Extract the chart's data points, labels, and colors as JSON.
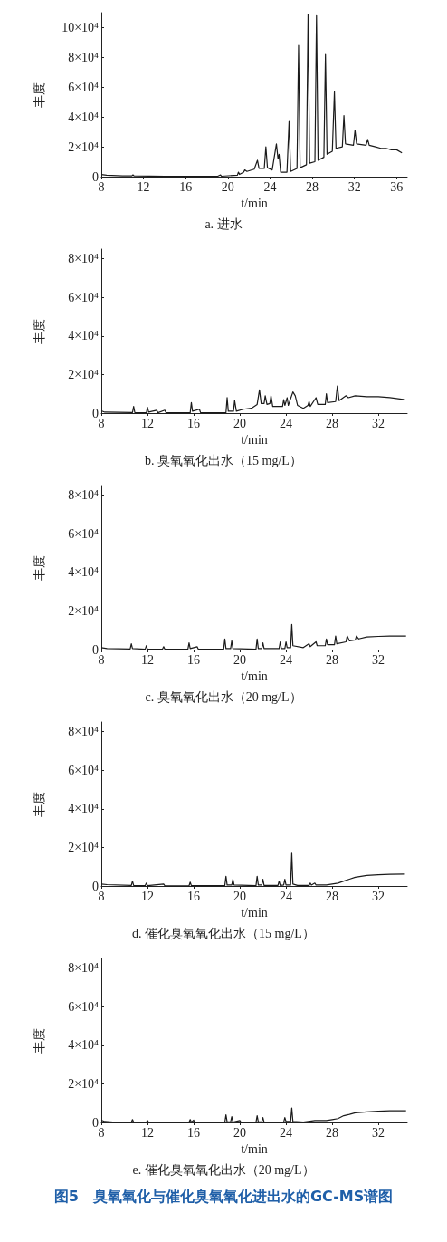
{
  "chart_data": [
    {
      "type": "line",
      "title": "a. 进水",
      "xlabel": "t/min",
      "ylabel": "丰度",
      "marker": "none",
      "xlim": [
        8,
        37
      ],
      "ylim": [
        0,
        110000
      ],
      "xticks": [
        8,
        12,
        16,
        20,
        24,
        28,
        32,
        36
      ],
      "yticks": [
        {
          "value": 0,
          "label": "0"
        },
        {
          "value": 20000,
          "label": "2×10⁴"
        },
        {
          "value": 40000,
          "label": "4×10⁴"
        },
        {
          "value": 60000,
          "label": "6×10⁴"
        },
        {
          "value": 80000,
          "label": "8×10⁴"
        },
        {
          "value": 100000,
          "label": "10×10⁴"
        }
      ],
      "x": [
        8.0,
        8.5,
        10.0,
        10.9,
        11.0,
        11.1,
        14,
        19.0,
        19.3,
        19.4,
        20.9,
        21.0,
        21.1,
        21.5,
        21.6,
        21.8,
        22.5,
        22.8,
        22.95,
        23.45,
        23.6,
        23.75,
        24.2,
        24.6,
        24.75,
        24.85,
        25.0,
        25.6,
        25.8,
        25.95,
        26.55,
        26.7,
        26.85,
        27.45,
        27.6,
        27.75,
        28.25,
        28.4,
        28.55,
        29.1,
        29.25,
        29.4,
        29.9,
        30.1,
        30.25,
        30.85,
        31.0,
        31.15,
        31.9,
        32.05,
        32.2,
        33.1,
        33.25,
        33.4,
        34.0,
        34.5,
        35.0,
        35.5,
        36.0,
        36.5
      ],
      "series": [
        {
          "color": "#1a1a1a",
          "values": [
            1500,
            1000,
            500,
            500,
            1200,
            500,
            200,
            200,
            1200,
            300,
            1000,
            3000,
            1500,
            3000,
            4500,
            3500,
            5000,
            11000,
            5500,
            5500,
            20000,
            6000,
            4500,
            22000,
            12000,
            15000,
            3000,
            3000,
            37000,
            3500,
            5500,
            88000,
            6000,
            8000,
            109000,
            9000,
            10000,
            108000,
            11000,
            13000,
            82000,
            15000,
            17000,
            57000,
            19000,
            20000,
            41000,
            22000,
            21000,
            31000,
            22000,
            21000,
            25000,
            21000,
            20000,
            19000,
            19000,
            18000,
            18000,
            16000
          ]
        }
      ]
    },
    {
      "type": "line",
      "title": "b. 臭氧氧化出水（15 mg/L）",
      "xlabel": "t/min",
      "ylabel": "丰度",
      "marker": "none",
      "xlim": [
        8,
        34.5
      ],
      "ylim": [
        0,
        85000
      ],
      "xticks": [
        8,
        12,
        16,
        20,
        24,
        28,
        32
      ],
      "yticks": [
        {
          "value": 0,
          "label": "0"
        },
        {
          "value": 20000,
          "label": "2×10⁴"
        },
        {
          "value": 40000,
          "label": "4×10⁴"
        },
        {
          "value": 60000,
          "label": "6×10⁴"
        },
        {
          "value": 80000,
          "label": "8×10⁴"
        }
      ],
      "x": [
        8.0,
        8.3,
        10.7,
        10.8,
        10.9,
        11.9,
        12.0,
        12.1,
        12.8,
        12.9,
        13.5,
        13.6,
        15.7,
        15.8,
        15.9,
        16.5,
        16.6,
        18.8,
        18.9,
        19.0,
        19.45,
        19.55,
        19.7,
        20.3,
        21.0,
        21.5,
        21.7,
        21.85,
        22.1,
        22.2,
        22.35,
        22.6,
        22.7,
        22.85,
        23.7,
        23.8,
        23.9,
        24.1,
        24.2,
        24.6,
        24.8,
        25.0,
        25.5,
        25.9,
        26.0,
        26.1,
        26.6,
        26.75,
        27.4,
        27.5,
        27.6,
        28.3,
        28.45,
        28.6,
        29.2,
        29.4,
        30.0,
        31.0,
        32.0,
        33.0,
        34.3
      ],
      "series": [
        {
          "color": "#1a1a1a",
          "values": [
            1200,
            500,
            300,
            3500,
            300,
            200,
            3000,
            500,
            1500,
            200,
            1500,
            200,
            200,
            5500,
            1000,
            2000,
            200,
            200,
            8000,
            1000,
            1000,
            6500,
            1000,
            2000,
            2500,
            4500,
            12000,
            5000,
            5000,
            9000,
            4500,
            5000,
            9000,
            3500,
            3500,
            7000,
            4000,
            8000,
            4000,
            11000,
            9000,
            4000,
            2500,
            4000,
            6000,
            3500,
            8000,
            4500,
            4500,
            10000,
            5500,
            6000,
            14000,
            6500,
            9000,
            8000,
            9000,
            8500,
            8500,
            8000,
            7000
          ]
        }
      ]
    },
    {
      "type": "line",
      "title": "c. 臭氧氧化出水（20 mg/L）",
      "xlabel": "t/min",
      "ylabel": "丰度",
      "marker": "none",
      "xlim": [
        8,
        34.5
      ],
      "ylim": [
        0,
        85000
      ],
      "xticks": [
        8,
        12,
        16,
        20,
        24,
        28,
        32
      ],
      "yticks": [
        {
          "value": 0,
          "label": "0"
        },
        {
          "value": 20000,
          "label": "2×10⁴"
        },
        {
          "value": 40000,
          "label": "4×10⁴"
        },
        {
          "value": 60000,
          "label": "6×10⁴"
        },
        {
          "value": 80000,
          "label": "8×10⁴"
        }
      ],
      "x": [
        8.0,
        8.5,
        10.5,
        10.6,
        10.7,
        11.8,
        11.9,
        12.0,
        13.3,
        13.4,
        13.5,
        15.5,
        15.6,
        15.7,
        16.3,
        16.4,
        18.6,
        18.7,
        18.8,
        19.2,
        19.3,
        19.4,
        21.4,
        21.5,
        21.6,
        21.9,
        22.0,
        22.1,
        23.4,
        23.5,
        23.6,
        23.9,
        24.0,
        24.1,
        24.4,
        24.5,
        24.6,
        25.5,
        26.0,
        26.1,
        26.6,
        26.7,
        27.4,
        27.5,
        27.6,
        28.2,
        28.3,
        28.4,
        29.2,
        29.3,
        29.5,
        30.0,
        30.1,
        30.3,
        31.0,
        32.0,
        33.0,
        34.4
      ],
      "series": [
        {
          "color": "#1a1a1a",
          "values": [
            1000,
            500,
            300,
            3000,
            500,
            200,
            2000,
            200,
            200,
            1500,
            200,
            200,
            3500,
            500,
            1500,
            200,
            200,
            5500,
            500,
            500,
            4500,
            500,
            200,
            5500,
            500,
            500,
            3500,
            500,
            500,
            4000,
            500,
            500,
            4000,
            1000,
            1000,
            13000,
            2000,
            1000,
            3000,
            1500,
            4000,
            2000,
            2000,
            5500,
            2500,
            2500,
            7000,
            3000,
            4000,
            7000,
            4500,
            5000,
            7000,
            5500,
            6500,
            6800,
            7000,
            7000
          ]
        }
      ]
    },
    {
      "type": "line",
      "title": "d. 催化臭氧氧化出水（15 mg/L）",
      "xlabel": "t/min",
      "ylabel": "丰度",
      "marker": "none",
      "xlim": [
        8,
        34.5
      ],
      "ylim": [
        0,
        85000
      ],
      "xticks": [
        8,
        12,
        16,
        20,
        24,
        28,
        32
      ],
      "yticks": [
        {
          "value": 0,
          "label": "0"
        },
        {
          "value": 20000,
          "label": "2×10⁴"
        },
        {
          "value": 40000,
          "label": "4×10⁴"
        },
        {
          "value": 60000,
          "label": "6×10⁴"
        },
        {
          "value": 80000,
          "label": "8×10⁴"
        }
      ],
      "x": [
        8.0,
        8.5,
        10.6,
        10.7,
        10.8,
        11.8,
        11.9,
        12.0,
        13.4,
        13.5,
        15.6,
        15.7,
        15.8,
        18.7,
        18.8,
        18.9,
        19.3,
        19.4,
        19.5,
        21.4,
        21.5,
        21.6,
        21.9,
        22.0,
        22.1,
        23.3,
        23.4,
        23.5,
        23.8,
        23.9,
        24.0,
        24.4,
        24.5,
        24.6,
        25.0,
        26.0,
        26.1,
        26.2,
        26.5,
        26.6,
        27.5,
        28.0,
        28.5,
        29.0,
        29.5,
        30.0,
        30.5,
        31.0,
        32.0,
        33.0,
        34.3
      ],
      "series": [
        {
          "color": "#1a1a1a",
          "values": [
            1000,
            700,
            300,
            2500,
            300,
            200,
            1500,
            200,
            1000,
            100,
            100,
            2000,
            200,
            200,
            5000,
            500,
            500,
            3500,
            500,
            200,
            5000,
            500,
            500,
            3500,
            300,
            300,
            2500,
            300,
            500,
            3500,
            500,
            500,
            17000,
            1000,
            300,
            300,
            1500,
            500,
            1500,
            500,
            500,
            1000,
            1500,
            2500,
            3500,
            4500,
            5000,
            5500,
            5800,
            6000,
            6200
          ]
        }
      ]
    },
    {
      "type": "line",
      "title": "e. 催化臭氧氧化出水（20 mg/L）",
      "xlabel": "t/min",
      "ylabel": "丰度",
      "marker": "none",
      "xlim": [
        8,
        34.5
      ],
      "ylim": [
        0,
        85000
      ],
      "xticks": [
        8,
        12,
        16,
        20,
        24,
        28,
        32
      ],
      "yticks": [
        {
          "value": 0,
          "label": "0"
        },
        {
          "value": 20000,
          "label": "2×10⁴"
        },
        {
          "value": 40000,
          "label": "4×10⁴"
        },
        {
          "value": 60000,
          "label": "6×10⁴"
        },
        {
          "value": 80000,
          "label": "8×10⁴"
        }
      ],
      "annotations": [
        "图5　臭氧氧化与催化臭氧氧化进出水的GC-MS谱图"
      ],
      "x": [
        8.0,
        8.3,
        9.0,
        10.6,
        10.7,
        10.8,
        11.9,
        12.0,
        12.1,
        15.6,
        15.7,
        15.8,
        16.0,
        16.1,
        18.7,
        18.8,
        18.9,
        19.2,
        19.3,
        19.4,
        20.0,
        20.1,
        21.4,
        21.5,
        21.6,
        21.9,
        22.0,
        22.1,
        23.8,
        23.9,
        24.0,
        24.4,
        24.5,
        24.6,
        25.5,
        26.5,
        27.5,
        28.0,
        28.5,
        29.0,
        29.5,
        30.0,
        31.0,
        32.0,
        33.0,
        34.4
      ],
      "series": [
        {
          "color": "#1a1a1a",
          "values": [
            1200,
            500,
            200,
            100,
            1500,
            100,
            100,
            1000,
            100,
            100,
            1500,
            100,
            1200,
            100,
            100,
            4000,
            300,
            300,
            3000,
            200,
            1000,
            100,
            100,
            3500,
            300,
            300,
            2500,
            200,
            200,
            2500,
            500,
            500,
            7500,
            500,
            200,
            1000,
            1000,
            1500,
            2000,
            3500,
            4200,
            5000,
            5500,
            5800,
            6000,
            6000
          ]
        }
      ]
    }
  ]
}
